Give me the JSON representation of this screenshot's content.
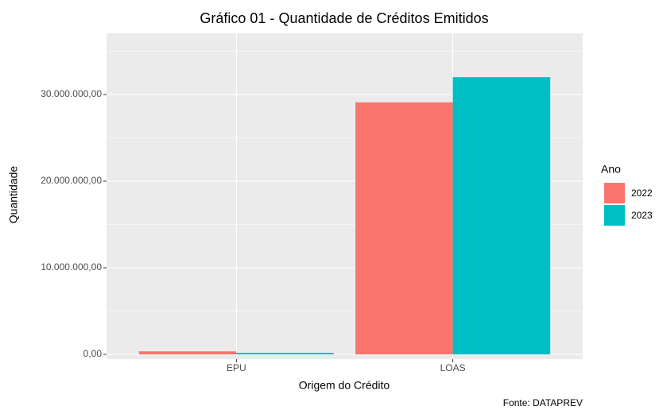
{
  "chart_data": {
    "type": "bar",
    "title": "Gráfico 01 - Quantidade de Créditos Emitidos",
    "x_label": "Origem do Crédito",
    "y_label": "Quantidade",
    "caption": "Fonte: DATAPREV",
    "legend_title": "Ano",
    "legend_position": "right",
    "categories": [
      "EPU",
      "LOAS"
    ],
    "series": [
      {
        "name": "2022",
        "color": "#F8766D",
        "values": [
          350000,
          29100000
        ]
      },
      {
        "name": "2023",
        "color": "#00BFC4",
        "values": [
          180000,
          32000000
        ]
      }
    ],
    "ylim": [
      -550000,
      37060000
    ],
    "yticks": [
      {
        "value": 0,
        "label": "0,00"
      },
      {
        "value": 10000000,
        "label": "10.000.000,00"
      },
      {
        "value": 20000000,
        "label": "20.000.000,00"
      },
      {
        "value": 30000000,
        "label": "30.000.000,00"
      }
    ],
    "grid": true
  }
}
